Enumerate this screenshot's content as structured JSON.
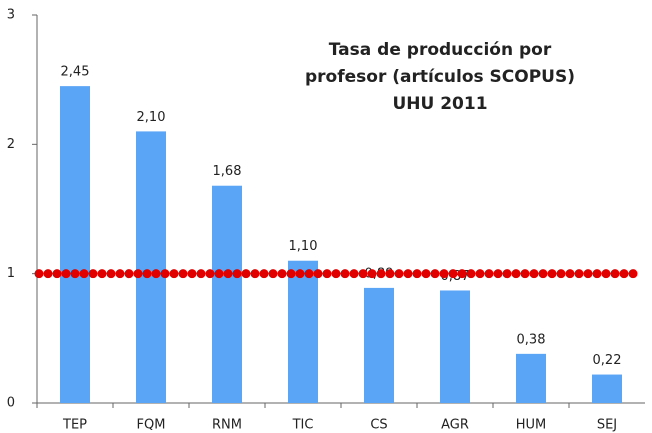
{
  "chart_data": {
    "type": "bar",
    "title": [
      "Tasa de producción  por",
      "profesor (artículos SCOPUS)",
      "UHU 2011"
    ],
    "categories": [
      "TEP",
      "FQM",
      "RNM",
      "TIC",
      "CS",
      "AGR",
      "HUM",
      "SEJ"
    ],
    "values": [
      2.45,
      2.1,
      1.68,
      1.1,
      0.89,
      0.87,
      0.38,
      0.22
    ],
    "value_labels": [
      "2,45",
      "2,10",
      "1,68",
      "1,10",
      "0,89",
      "0,87",
      "0,38",
      "0,22"
    ],
    "color": "#5aa5f5",
    "ylim": [
      0,
      3
    ],
    "yticks": [
      0,
      1,
      2,
      3
    ],
    "grid": false,
    "reference_line": {
      "value": 1,
      "color": "#e00000"
    }
  }
}
